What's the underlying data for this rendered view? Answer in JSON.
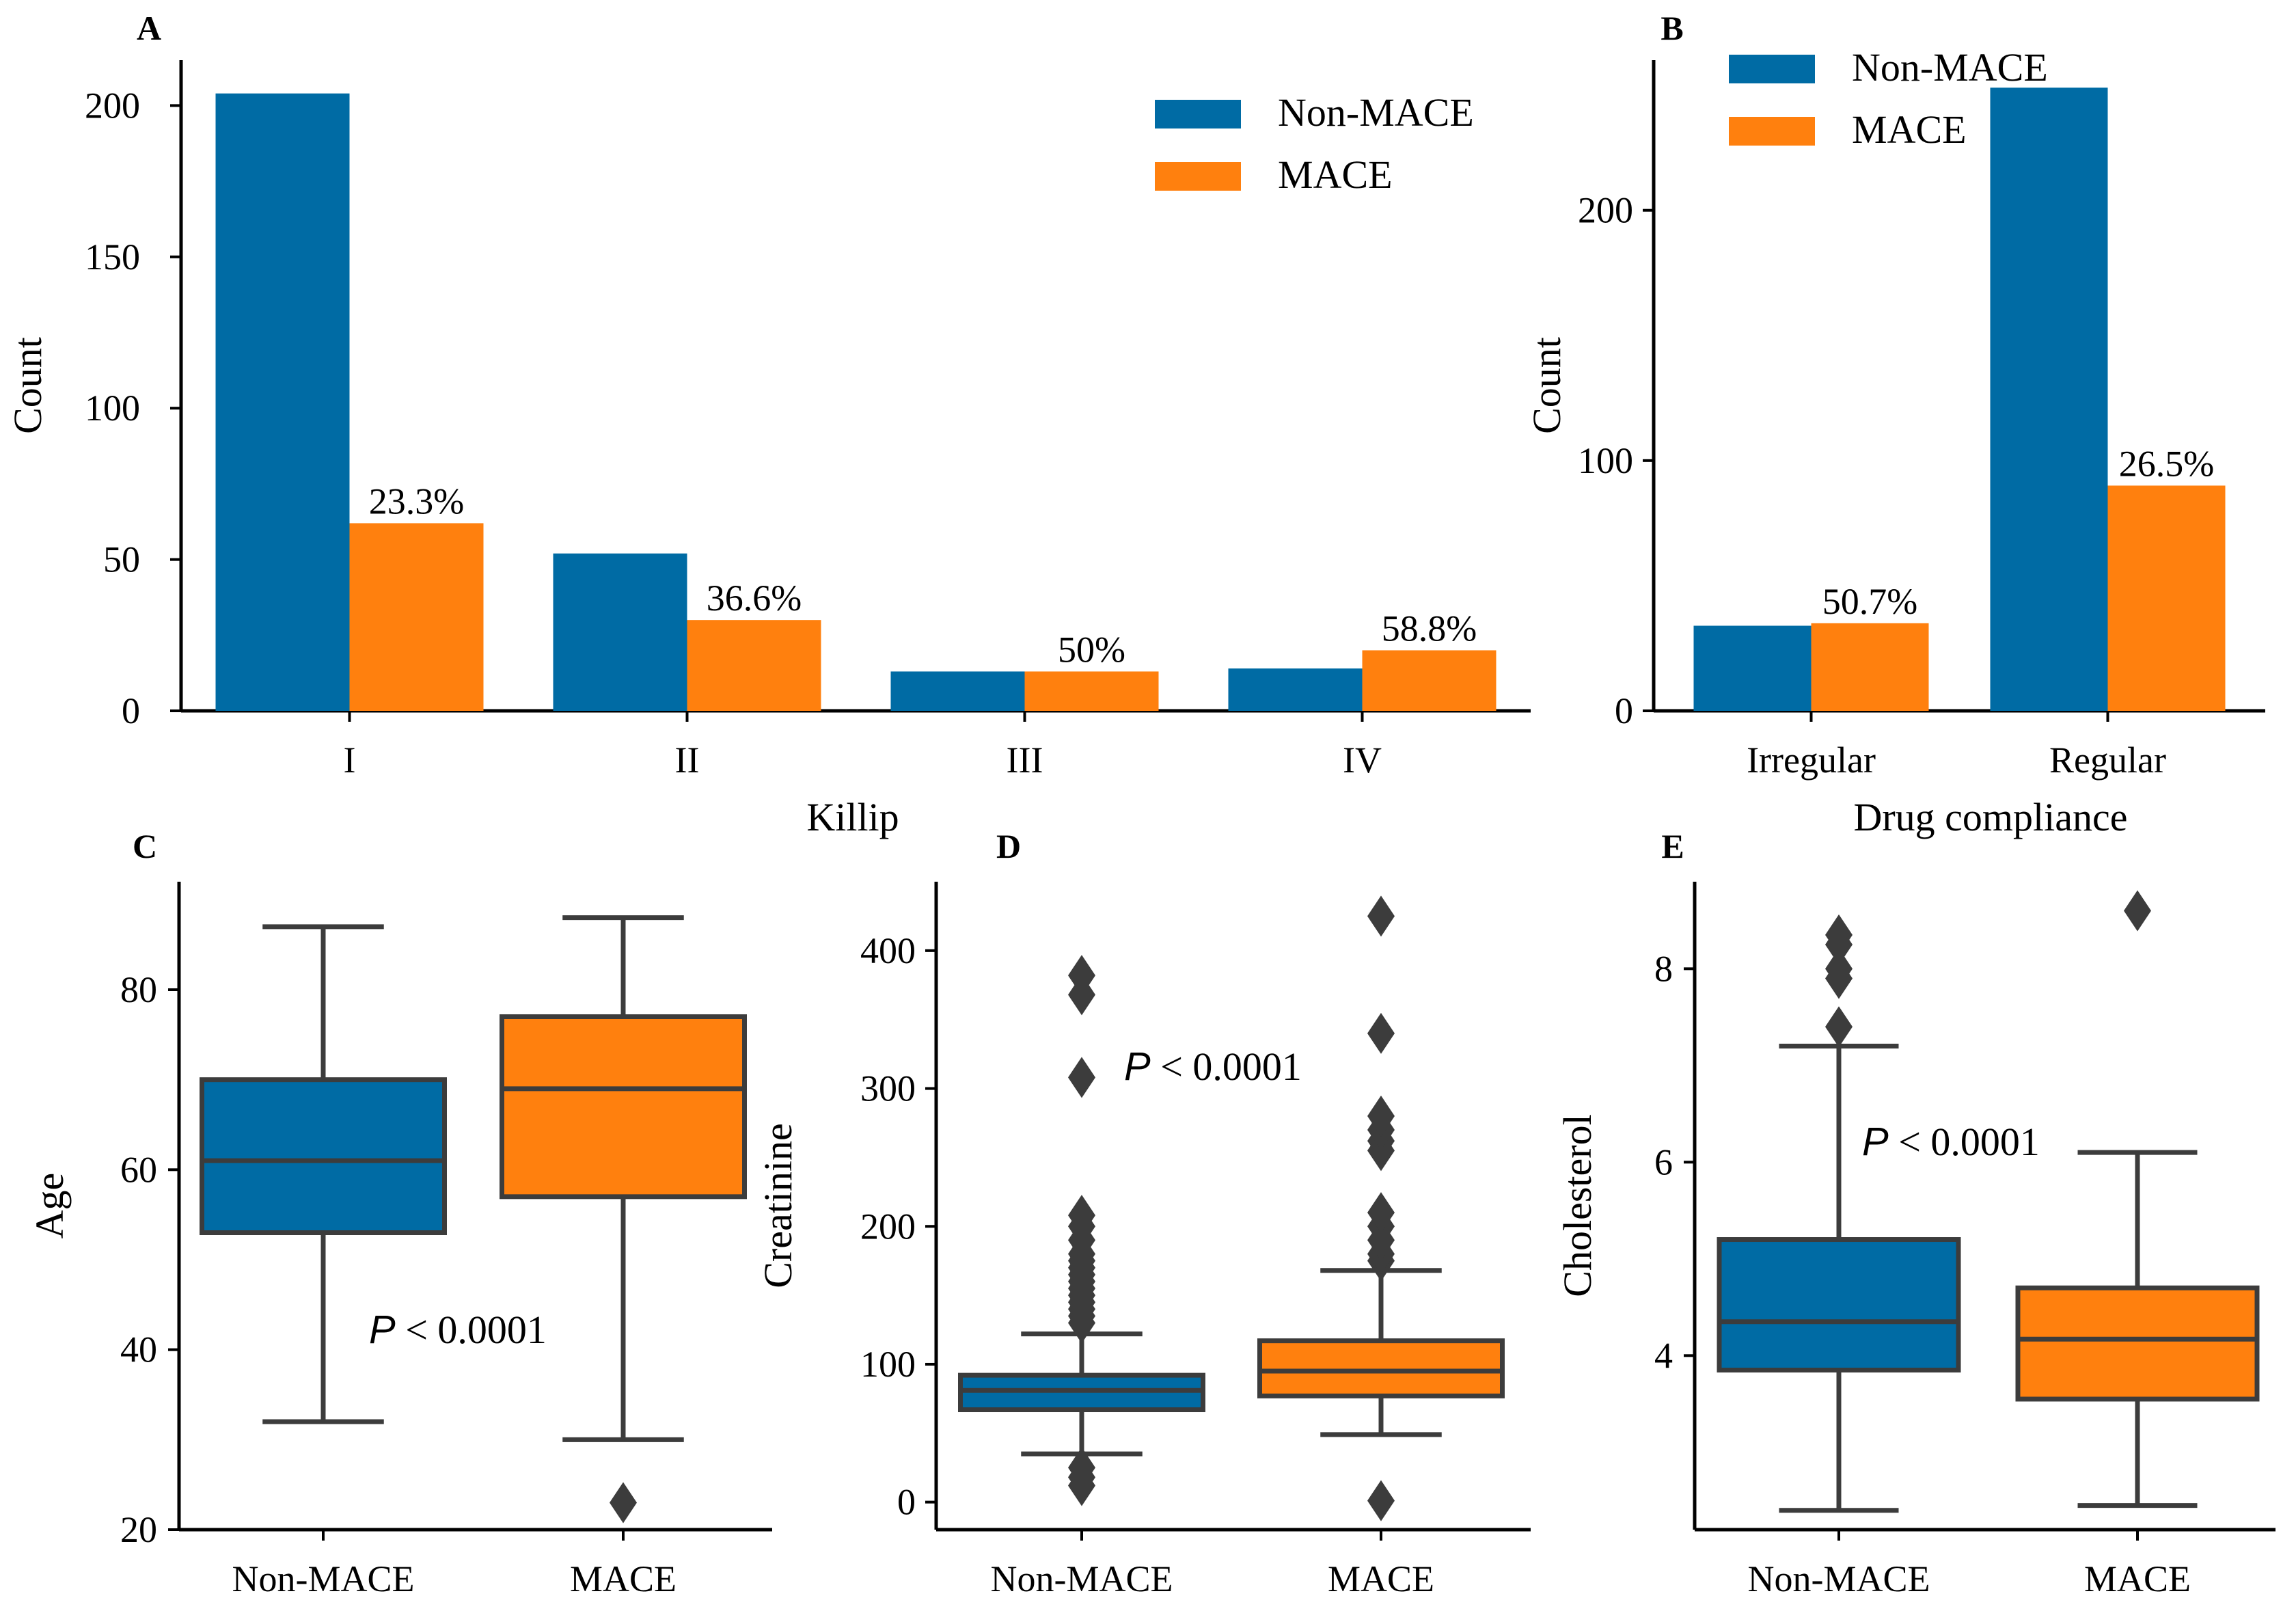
{
  "colors": {
    "non_mace": "#006ba4",
    "mace": "#ff800e",
    "box_line": "#3c3c3c",
    "axis": "#000000"
  },
  "chart_data": [
    {
      "id": "A",
      "type": "bar",
      "panel_label": "A",
      "categories": [
        "I",
        "II",
        "III",
        "IV"
      ],
      "series": [
        {
          "name": "Non-MACE",
          "values": [
            204,
            52,
            13,
            14
          ]
        },
        {
          "name": "MACE",
          "values": [
            62,
            30,
            13,
            20
          ]
        }
      ],
      "bar_labels": [
        "23.3%",
        "36.6%",
        "50%",
        "58.8%"
      ],
      "xlabel": "Killip",
      "ylabel": "Count",
      "ylim": [
        0,
        215
      ],
      "yticks": [
        0,
        50,
        100,
        150,
        200
      ],
      "legend": {
        "position": "top-right",
        "entries": [
          "Non-MACE",
          "MACE"
        ]
      }
    },
    {
      "id": "B",
      "type": "bar",
      "panel_label": "B",
      "categories": [
        "Irregular",
        "Regular"
      ],
      "series": [
        {
          "name": "Non-MACE",
          "values": [
            34,
            249
          ]
        },
        {
          "name": "MACE",
          "values": [
            35,
            90
          ]
        }
      ],
      "bar_labels": [
        "50.7%",
        "26.5%"
      ],
      "xlabel": "Drug compliance",
      "ylabel": "Count",
      "ylim": [
        0,
        260
      ],
      "yticks": [
        0,
        100,
        200
      ],
      "legend": {
        "position": "top-left",
        "entries": [
          "Non-MACE",
          "MACE"
        ]
      }
    },
    {
      "id": "C",
      "type": "box",
      "panel_label": "C",
      "categories": [
        "Non-MACE",
        "MACE"
      ],
      "ylabel": "Age",
      "ylim": [
        20,
        92
      ],
      "yticks": [
        20,
        40,
        60,
        80
      ],
      "boxes": [
        {
          "name": "Non-MACE",
          "whislo": 32,
          "q1": 53,
          "med": 61,
          "q3": 70,
          "whishi": 87,
          "fliers": []
        },
        {
          "name": "MACE",
          "whislo": 30,
          "q1": 57,
          "med": 69,
          "q3": 77,
          "whishi": 88,
          "fliers": [
            23
          ]
        }
      ],
      "annotation": {
        "italic": "P",
        "text": " < 0.0001"
      }
    },
    {
      "id": "D",
      "type": "box",
      "panel_label": "D",
      "categories": [
        "Non-MACE",
        "MACE"
      ],
      "ylabel": "Creatinine",
      "ylim": [
        -20,
        450
      ],
      "yticks": [
        0,
        100,
        200,
        300,
        400
      ],
      "boxes": [
        {
          "name": "Non-MACE",
          "whislo": 35,
          "q1": 67,
          "med": 81,
          "q3": 92,
          "whishi": 122,
          "fliers": [
            12,
            18,
            25,
            130,
            135,
            140,
            145,
            150,
            155,
            160,
            165,
            170,
            175,
            180,
            190,
            200,
            208,
            308,
            368,
            382
          ]
        },
        {
          "name": "MACE",
          "whislo": 49,
          "q1": 77,
          "med": 95,
          "q3": 117,
          "whishi": 168,
          "fliers": [
            1,
            175,
            180,
            190,
            200,
            210,
            255,
            262,
            270,
            280,
            340,
            425
          ]
        }
      ],
      "annotation": {
        "italic": "P",
        "text": " < 0.0001"
      }
    },
    {
      "id": "E",
      "type": "box",
      "panel_label": "E",
      "categories": [
        "Non-MACE",
        "MACE"
      ],
      "ylabel": "Cholesterol",
      "ylim": [
        2.2,
        8.9
      ],
      "yticks": [
        4,
        6,
        8
      ],
      "boxes": [
        {
          "name": "Non-MACE",
          "whislo": 2.4,
          "q1": 3.85,
          "med": 4.35,
          "q3": 5.2,
          "whishi": 7.2,
          "fliers": [
            7.4,
            7.9,
            8.0,
            8.25,
            8.35
          ]
        },
        {
          "name": "MACE",
          "whislo": 2.45,
          "q1": 3.55,
          "med": 4.17,
          "q3": 4.7,
          "whishi": 6.1,
          "fliers": [
            8.6
          ]
        }
      ],
      "annotation": {
        "italic": "P",
        "text": " < 0.0001"
      }
    }
  ]
}
